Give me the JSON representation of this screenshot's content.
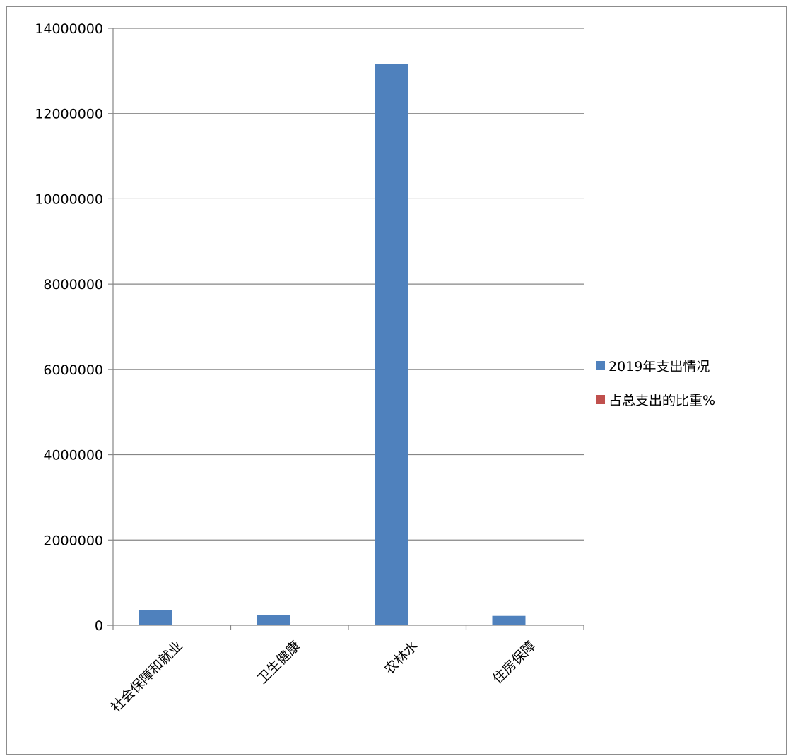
{
  "chart_data": {
    "type": "bar",
    "title": "",
    "xlabel": "",
    "ylabel": "",
    "categories": [
      "社会保障和就业",
      "卫生健康",
      "农林水",
      "住房保障"
    ],
    "series": [
      {
        "name": "2019年支出情况",
        "color": "#4f81bd",
        "values": [
          360000,
          240000,
          13160000,
          220000
        ]
      },
      {
        "name": "占总支出的比重%",
        "color": "#c0504d",
        "values": [
          0,
          0,
          0,
          0
        ]
      }
    ],
    "ylim": [
      0,
      14000000
    ],
    "yticks": [
      "0",
      "2000000",
      "4000000",
      "6000000",
      "8000000",
      "10000000",
      "12000000",
      "14000000"
    ],
    "grid": true,
    "legend_position": "right"
  }
}
